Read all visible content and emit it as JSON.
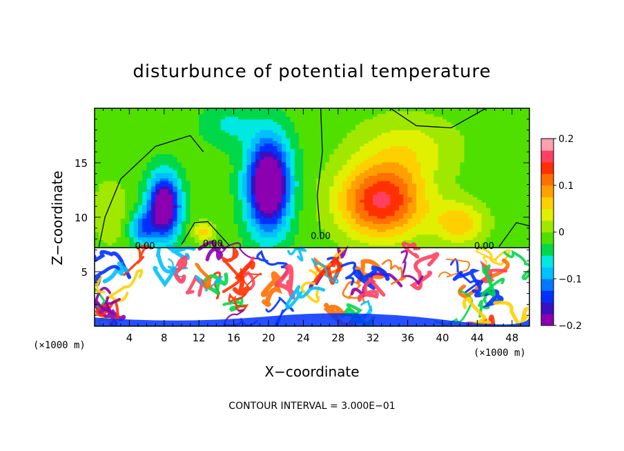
{
  "chart_data": {
    "type": "heatmap",
    "title": "disturbunce of potential temperature",
    "xlabel": "X−coordinate",
    "ylabel": "Z−coordinate",
    "x_unit_left": "(×1000 m)",
    "x_unit_right": "(×1000 m)",
    "footer": "CONTOUR INTERVAL = 3.000E−01",
    "xlim": [
      0,
      50
    ],
    "ylim": [
      0,
      20
    ],
    "x_ticks": [
      4,
      8,
      12,
      16,
      20,
      24,
      28,
      32,
      36,
      40,
      44,
      48
    ],
    "y_ticks": [
      5,
      10,
      15
    ],
    "colorbar": {
      "range": [
        -0.2,
        0.2
      ],
      "tick_values": [
        0.2,
        0.1,
        0,
        -0.1,
        -0.2
      ],
      "tick_labels": [
        "0.2",
        "0.1",
        "0",
        "−0.1",
        "−0.2"
      ],
      "colors": [
        "#8b00b0",
        "#3a10c0",
        "#0030ff",
        "#0078ff",
        "#00c0ff",
        "#00e8e0",
        "#00d848",
        "#50e000",
        "#a0e800",
        "#e0f000",
        "#ffd000",
        "#ffa000",
        "#ff7000",
        "#ff3000",
        "#ff4060",
        "#ffa0b0"
      ]
    },
    "contour_labels": [
      {
        "text": "0.00",
        "x": 5.8,
        "y": 7.1
      },
      {
        "text": "0.00",
        "x": 13.6,
        "y": 7.3
      },
      {
        "text": "0.00",
        "x": 26.0,
        "y": 8.0
      },
      {
        "text": "0.00",
        "x": 44.8,
        "y": 7.1
      }
    ],
    "features": [
      {
        "kind": "minimum",
        "x": 8,
        "z": 11,
        "sx": 1.8,
        "sz": 2.8,
        "amp": -0.22
      },
      {
        "kind": "minimum",
        "x": 20,
        "z": 13,
        "sx": 2.4,
        "sz": 4.2,
        "amp": -0.24
      },
      {
        "kind": "minimum",
        "x": 5.5,
        "z": 9,
        "sx": 1.5,
        "sz": 1.5,
        "amp": -0.1
      },
      {
        "kind": "minimum",
        "x": 15.5,
        "z": 18.5,
        "sx": 3.0,
        "sz": 2.0,
        "amp": -0.04
      },
      {
        "kind": "maximum",
        "x": 33,
        "z": 11.5,
        "sx": 5.0,
        "sz": 3.4,
        "amp": 0.17
      },
      {
        "kind": "maximum",
        "x": 42,
        "z": 9.5,
        "sx": 3.0,
        "sz": 2.0,
        "amp": 0.08
      },
      {
        "kind": "maximum",
        "x": 36,
        "z": 16.5,
        "sx": 6.0,
        "sz": 3.0,
        "amp": 0.05
      },
      {
        "kind": "maximum",
        "x": 12.5,
        "z": 8.7,
        "sx": 1.2,
        "sz": 1.0,
        "amp": 0.07
      },
      {
        "kind": "maximum",
        "x": 1.8,
        "z": 10.5,
        "sx": 2.0,
        "sz": 3.0,
        "amp": 0.04
      }
    ],
    "layer_top_z": 7.2,
    "lower_layer": "turbulent, mostly saturated (white) with multicolor filaments"
  }
}
